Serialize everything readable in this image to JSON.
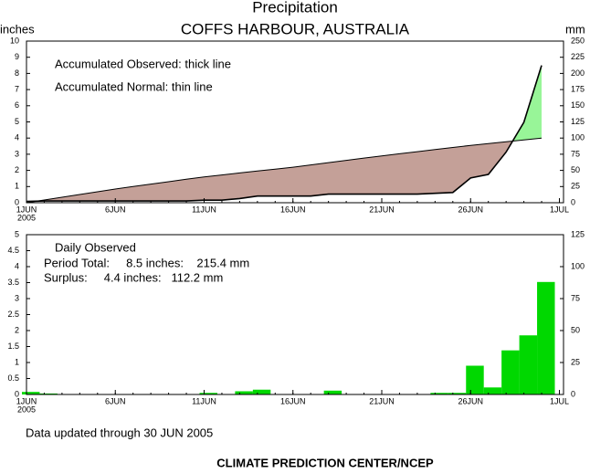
{
  "chart_data": [
    {
      "type": "line",
      "title": "Precipitation",
      "subtitle": "COFFS HARBOUR, AUSTRALIA",
      "ylabel": "inches",
      "y2label": "mm",
      "annotations": [
        "Accumulated Observed: thick line",
        "Accumulated Normal: thin line"
      ],
      "x": [
        1,
        2,
        3,
        4,
        5,
        6,
        7,
        8,
        9,
        10,
        11,
        12,
        13,
        14,
        15,
        16,
        17,
        18,
        19,
        20,
        21,
        22,
        23,
        24,
        25,
        26,
        27,
        28,
        29,
        30
      ],
      "series": [
        {
          "name": "Accumulated Observed",
          "color": "#000000",
          "values": [
            0.08,
            0.11,
            0.11,
            0.11,
            0.11,
            0.11,
            0.11,
            0.11,
            0.11,
            0.11,
            0.16,
            0.16,
            0.26,
            0.41,
            0.41,
            0.41,
            0.41,
            0.53,
            0.53,
            0.53,
            0.53,
            0.53,
            0.53,
            0.58,
            0.63,
            1.53,
            1.75,
            3.13,
            4.98,
            8.5
          ]
        },
        {
          "name": "Accumulated Normal",
          "color": "#000000",
          "values": [
            0,
            0.17,
            0.34,
            0.51,
            0.68,
            0.85,
            1.0,
            1.15,
            1.3,
            1.45,
            1.6,
            1.72,
            1.84,
            1.96,
            2.08,
            2.2,
            2.34,
            2.48,
            2.62,
            2.76,
            2.9,
            3.03,
            3.16,
            3.29,
            3.42,
            3.55,
            3.66,
            3.77,
            3.88,
            4.0
          ]
        }
      ],
      "deficit_color": "#c4a098",
      "surplus_color": "#98f598",
      "xlim": [
        1,
        31
      ],
      "xticks": [
        {
          "value": 1,
          "label": "1JUN"
        },
        {
          "value": 6,
          "label": "6JUN"
        },
        {
          "value": 11,
          "label": "11JUN"
        },
        {
          "value": 16,
          "label": "16JUN"
        },
        {
          "value": 21,
          "label": "21JUN"
        },
        {
          "value": 26,
          "label": "26JUN"
        },
        {
          "value": 31,
          "label": "1JUL"
        }
      ],
      "xtick_sublabel": "2005",
      "ylim": [
        0,
        10
      ],
      "yticks": [
        0,
        1,
        2,
        3,
        4,
        5,
        6,
        7,
        8,
        9,
        10
      ],
      "y2lim": [
        0,
        250
      ],
      "y2ticks": [
        0,
        25,
        50,
        75,
        100,
        125,
        150,
        175,
        200,
        225,
        250
      ]
    },
    {
      "type": "bar",
      "annotations": [
        "Daily Observed",
        "Period Total:     8.5 inches:    215.4 mm",
        "Surplus:     4.4 inches:   112.2 mm"
      ],
      "x": [
        1,
        2,
        11,
        13,
        14,
        18,
        24,
        25,
        26,
        27,
        28,
        29,
        30
      ],
      "values": [
        0.08,
        0.03,
        0.05,
        0.1,
        0.15,
        0.12,
        0.05,
        0.05,
        0.9,
        0.22,
        1.38,
        1.85,
        3.52
      ],
      "color": "#00d800",
      "xlim": [
        1,
        31
      ],
      "xticks": [
        {
          "value": 1,
          "label": "1JUN"
        },
        {
          "value": 6,
          "label": "6JUN"
        },
        {
          "value": 11,
          "label": "11JUN"
        },
        {
          "value": 16,
          "label": "16JUN"
        },
        {
          "value": 21,
          "label": "21JUN"
        },
        {
          "value": 26,
          "label": "26JUN"
        },
        {
          "value": 31,
          "label": "1JUL"
        }
      ],
      "xtick_sublabel": "2005",
      "ylim": [
        0,
        5
      ],
      "yticks": [
        0,
        0.5,
        1,
        1.5,
        2,
        2.5,
        3,
        3.5,
        4,
        4.5,
        5
      ],
      "y2lim": [
        0,
        125
      ],
      "y2ticks": [
        0,
        25,
        50,
        75,
        100,
        125
      ]
    }
  ],
  "footer": "Data updated through 30 JUN 2005",
  "credit": "CLIMATE PREDICTION CENTER/NCEP"
}
